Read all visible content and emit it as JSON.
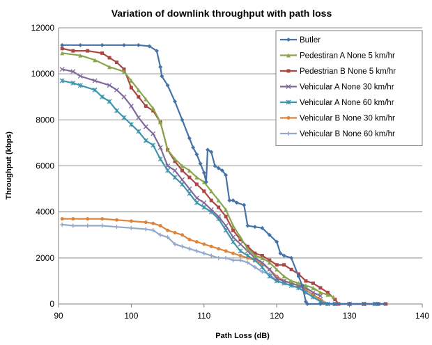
{
  "chart_data": {
    "type": "line",
    "title": "Variation of downlink throughput with path loss",
    "xlabel": "Path Loss (dB)",
    "ylabel": "Throughput  (kbps)",
    "xlim": [
      90,
      140
    ],
    "ylim": [
      0,
      12000
    ],
    "xticks": [
      90,
      100,
      110,
      120,
      130,
      140
    ],
    "yticks": [
      0,
      2000,
      4000,
      6000,
      8000,
      10000,
      12000
    ],
    "grid": "horizontal",
    "legend_position": "top-right",
    "series": [
      {
        "name": "Butler",
        "color": "#4572A7",
        "marker": "diamond",
        "points": [
          [
            90.5,
            11250
          ],
          [
            93,
            11250
          ],
          [
            96,
            11250
          ],
          [
            99,
            11250
          ],
          [
            101,
            11250
          ],
          [
            102.5,
            11200
          ],
          [
            103.5,
            11000
          ],
          [
            104,
            10300
          ],
          [
            104.2,
            9900
          ],
          [
            105,
            9500
          ],
          [
            106,
            8800
          ],
          [
            107,
            8000
          ],
          [
            108,
            7200
          ],
          [
            108.5,
            6800
          ],
          [
            109,
            6500
          ],
          [
            109.5,
            6100
          ],
          [
            110,
            5700
          ],
          [
            110.3,
            5300
          ],
          [
            110.5,
            6700
          ],
          [
            111,
            6600
          ],
          [
            111.5,
            6000
          ],
          [
            112,
            5900
          ],
          [
            112.5,
            5800
          ],
          [
            113,
            5600
          ],
          [
            113.5,
            4500
          ],
          [
            114,
            4500
          ],
          [
            114.5,
            4400
          ],
          [
            115.5,
            4300
          ],
          [
            116,
            3400
          ],
          [
            117,
            3350
          ],
          [
            118,
            3300
          ],
          [
            119,
            3000
          ],
          [
            120,
            2700
          ],
          [
            120.5,
            2200
          ],
          [
            121,
            2100
          ],
          [
            122,
            2000
          ],
          [
            123,
            1200
          ],
          [
            123.5,
            800
          ],
          [
            124,
            100
          ],
          [
            124.2,
            0
          ],
          [
            126,
            0
          ],
          [
            128,
            0
          ],
          [
            130,
            0
          ],
          [
            132,
            0
          ],
          [
            134,
            0
          ],
          [
            134.8,
            0
          ]
        ]
      },
      {
        "name": "Pedestiran A None 5 km/hr",
        "color": "#89A54E",
        "marker": "triangle",
        "points": [
          [
            90.5,
            10900
          ],
          [
            93,
            10800
          ],
          [
            95,
            10600
          ],
          [
            97,
            10300
          ],
          [
            99,
            10100
          ],
          [
            100,
            9700
          ],
          [
            101,
            9300
          ],
          [
            102,
            8900
          ],
          [
            103,
            8500
          ],
          [
            104,
            7900
          ],
          [
            105,
            6700
          ],
          [
            106,
            6300
          ],
          [
            107,
            6000
          ],
          [
            108,
            5800
          ],
          [
            109,
            5500
          ],
          [
            110,
            5300
          ],
          [
            111,
            4900
          ],
          [
            112,
            4500
          ],
          [
            113,
            4100
          ],
          [
            114,
            3400
          ],
          [
            115,
            2900
          ],
          [
            116,
            2400
          ],
          [
            117,
            2100
          ],
          [
            118,
            2000
          ],
          [
            119,
            1800
          ],
          [
            120,
            1500
          ],
          [
            121,
            1200
          ],
          [
            122,
            1000
          ],
          [
            123,
            900
          ],
          [
            124,
            800
          ],
          [
            125,
            700
          ],
          [
            126,
            500
          ],
          [
            127,
            400
          ],
          [
            127.8,
            300
          ]
        ]
      },
      {
        "name": "Pedestrian B None 5 km/hr",
        "color": "#AA4643",
        "marker": "square",
        "points": [
          [
            90.5,
            11100
          ],
          [
            92,
            11000
          ],
          [
            94,
            11000
          ],
          [
            96,
            10900
          ],
          [
            97,
            10700
          ],
          [
            98,
            10500
          ],
          [
            99,
            10200
          ],
          [
            100,
            9400
          ],
          [
            101,
            9000
          ],
          [
            102,
            8600
          ],
          [
            103,
            8400
          ],
          [
            104,
            7900
          ],
          [
            105,
            6700
          ],
          [
            106,
            6200
          ],
          [
            107,
            5800
          ],
          [
            108,
            5500
          ],
          [
            109,
            5200
          ],
          [
            110,
            4900
          ],
          [
            111,
            4500
          ],
          [
            112,
            4200
          ],
          [
            113,
            3800
          ],
          [
            114,
            3200
          ],
          [
            115,
            2800
          ],
          [
            116,
            2500
          ],
          [
            117,
            2200
          ],
          [
            118,
            2100
          ],
          [
            119,
            1900
          ],
          [
            120,
            1700
          ],
          [
            121,
            1700
          ],
          [
            122,
            1500
          ],
          [
            123,
            1300
          ],
          [
            124,
            1000
          ],
          [
            125,
            900
          ],
          [
            126,
            700
          ],
          [
            127,
            500
          ],
          [
            128,
            200
          ],
          [
            128.5,
            0
          ],
          [
            130,
            0
          ],
          [
            132,
            0
          ],
          [
            134,
            0
          ],
          [
            135,
            0
          ]
        ]
      },
      {
        "name": "Vehicular A None 30 km/hr",
        "color": "#80699B",
        "marker": "x",
        "points": [
          [
            90.5,
            10200
          ],
          [
            92,
            10100
          ],
          [
            93,
            9900
          ],
          [
            95,
            9700
          ],
          [
            97,
            9500
          ],
          [
            98,
            9300
          ],
          [
            99,
            9000
          ],
          [
            100,
            8600
          ],
          [
            101,
            8100
          ],
          [
            102,
            7700
          ],
          [
            103,
            7400
          ],
          [
            104,
            6800
          ],
          [
            105,
            6000
          ],
          [
            106,
            5800
          ],
          [
            107,
            5400
          ],
          [
            108,
            5000
          ],
          [
            109,
            4600
          ],
          [
            110,
            4400
          ],
          [
            111,
            4100
          ],
          [
            112,
            3800
          ],
          [
            113,
            3400
          ],
          [
            114,
            2900
          ],
          [
            115,
            2600
          ],
          [
            116,
            2300
          ],
          [
            117,
            2000
          ],
          [
            118,
            1800
          ],
          [
            119,
            1500
          ],
          [
            120,
            1100
          ],
          [
            121,
            1000
          ],
          [
            122,
            900
          ],
          [
            123,
            800
          ],
          [
            124,
            700
          ],
          [
            125,
            500
          ],
          [
            126,
            350
          ]
        ]
      },
      {
        "name": "Vehicular A None 60 km/hr",
        "color": "#3D96AE",
        "marker": "star",
        "points": [
          [
            90.5,
            9700
          ],
          [
            92,
            9600
          ],
          [
            93,
            9500
          ],
          [
            95,
            9300
          ],
          [
            96,
            9000
          ],
          [
            97,
            8800
          ],
          [
            98,
            8400
          ],
          [
            99,
            8100
          ],
          [
            100,
            7800
          ],
          [
            101,
            7500
          ],
          [
            102,
            7100
          ],
          [
            103,
            6900
          ],
          [
            104,
            6300
          ],
          [
            105,
            5800
          ],
          [
            106,
            5500
          ],
          [
            107,
            5200
          ],
          [
            108,
            4800
          ],
          [
            109,
            4400
          ],
          [
            110,
            4200
          ],
          [
            111,
            4000
          ],
          [
            112,
            3700
          ],
          [
            113,
            3200
          ],
          [
            114,
            2700
          ],
          [
            115,
            2300
          ],
          [
            116,
            2100
          ],
          [
            117,
            1900
          ],
          [
            118,
            1600
          ],
          [
            119,
            1200
          ],
          [
            120,
            1000
          ],
          [
            121,
            900
          ],
          [
            122,
            800
          ],
          [
            123,
            700
          ],
          [
            124,
            500
          ],
          [
            125,
            300
          ],
          [
            126,
            100
          ],
          [
            127,
            0
          ],
          [
            128,
            0
          ],
          [
            130,
            0
          ],
          [
            132,
            0
          ],
          [
            133.5,
            0
          ]
        ]
      },
      {
        "name": "Vehicular B None 30 km/hr",
        "color": "#DB843D",
        "marker": "circle",
        "points": [
          [
            90.5,
            3700
          ],
          [
            92,
            3700
          ],
          [
            94,
            3700
          ],
          [
            96,
            3700
          ],
          [
            98,
            3650
          ],
          [
            100,
            3600
          ],
          [
            102,
            3550
          ],
          [
            103,
            3500
          ],
          [
            104,
            3400
          ],
          [
            105,
            3200
          ],
          [
            106,
            3100
          ],
          [
            107,
            3000
          ],
          [
            108,
            2800
          ],
          [
            109,
            2700
          ],
          [
            110,
            2600
          ],
          [
            111,
            2500
          ],
          [
            112,
            2400
          ],
          [
            113,
            2300
          ],
          [
            114,
            2200
          ],
          [
            115,
            2100
          ],
          [
            116,
            2000
          ],
          [
            117,
            1900
          ],
          [
            118,
            1750
          ],
          [
            119,
            1500
          ],
          [
            120,
            1200
          ],
          [
            121,
            1000
          ],
          [
            122,
            900
          ],
          [
            123,
            800
          ],
          [
            124,
            600
          ],
          [
            125,
            400
          ],
          [
            126,
            200
          ],
          [
            127,
            0
          ],
          [
            128,
            0
          ],
          [
            130,
            0
          ],
          [
            132,
            0
          ],
          [
            133.5,
            0
          ]
        ]
      },
      {
        "name": "Vehicular B None 60 km/hr",
        "color": "#92A8CD",
        "marker": "plus",
        "points": [
          [
            90.5,
            3450
          ],
          [
            92,
            3400
          ],
          [
            94,
            3400
          ],
          [
            96,
            3400
          ],
          [
            98,
            3350
          ],
          [
            100,
            3300
          ],
          [
            102,
            3250
          ],
          [
            103,
            3200
          ],
          [
            104,
            3000
          ],
          [
            105,
            2900
          ],
          [
            106,
            2600
          ],
          [
            107,
            2500
          ],
          [
            108,
            2400
          ],
          [
            109,
            2300
          ],
          [
            110,
            2200
          ],
          [
            111,
            2100
          ],
          [
            112,
            2000
          ],
          [
            113,
            2000
          ],
          [
            114,
            1900
          ],
          [
            115,
            1900
          ],
          [
            116,
            1800
          ],
          [
            117,
            1600
          ],
          [
            118,
            1400
          ],
          [
            119,
            1300
          ],
          [
            120,
            1000
          ],
          [
            121,
            900
          ],
          [
            122,
            800
          ],
          [
            123,
            700
          ],
          [
            124,
            500
          ],
          [
            125,
            300
          ],
          [
            126,
            150
          ],
          [
            127,
            0
          ],
          [
            128,
            0
          ]
        ]
      }
    ]
  }
}
